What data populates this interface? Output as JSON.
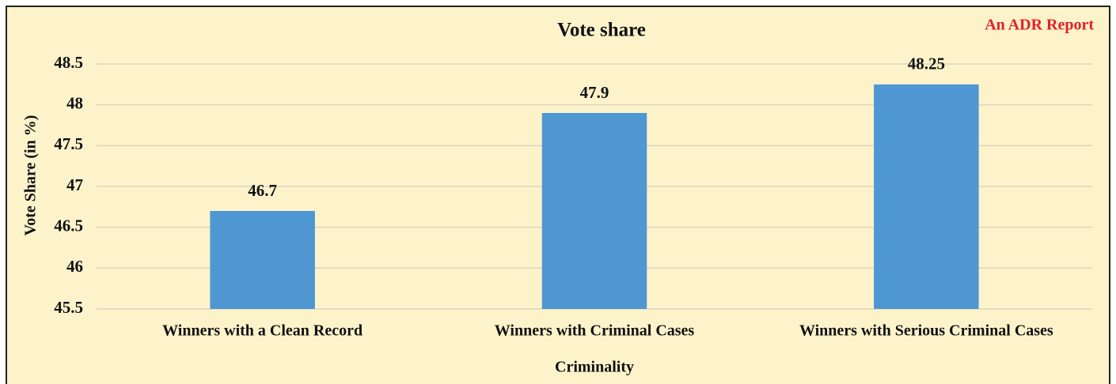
{
  "chart_data": {
    "type": "bar",
    "title": "Vote share",
    "annotation": "An ADR Report",
    "x_label": "Criminality",
    "y_label": "Vote Share (in %)",
    "categories": [
      "Winners with a Clean Record",
      "Winners with Criminal Cases",
      "Winners with Serious Criminal Cases"
    ],
    "values": [
      46.7,
      47.9,
      48.25
    ],
    "color": "#4e97d3",
    "ylim": [
      45.5,
      48.5
    ],
    "yticks": [
      45.5,
      46,
      46.5,
      47,
      47.5,
      48,
      48.5
    ],
    "grid": true
  }
}
